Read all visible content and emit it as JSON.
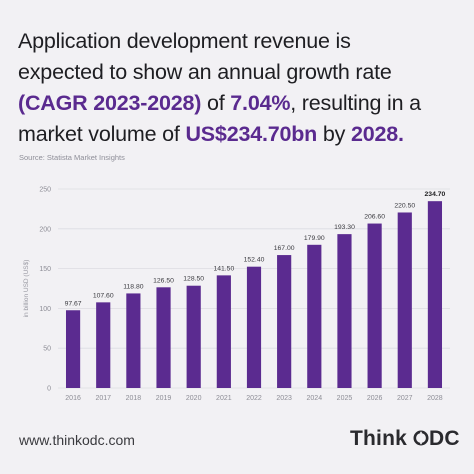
{
  "headline": {
    "line1": "Application development revenue is",
    "line2": "expected to show an annual growth rate",
    "line3_highlight": "(CAGR 2023-2028)",
    "line3_mid": " of ",
    "line3_value": "7.04%",
    "line3_end": ", resulting in a",
    "line4_start": "market volume of ",
    "line4_value": "US$234.70bn",
    "line4_mid": " by ",
    "line4_year": "2028",
    "line4_end": "."
  },
  "source": "Source: Statista Market Insights",
  "footer": {
    "url": "www.thinkodc.com",
    "logo_text_left": "Think",
    "logo_text_right": "DC"
  },
  "colors": {
    "bar": "#5b2b90",
    "highlight": "#5a2a8f",
    "grid": "#dcdce2",
    "background": "#f2f1f4"
  },
  "chart_data": {
    "type": "bar",
    "categories": [
      "2016",
      "2017",
      "2018",
      "2019",
      "2020",
      "2021",
      "2022",
      "2023",
      "2024",
      "2025",
      "2026",
      "2027",
      "2028"
    ],
    "values": [
      97.67,
      107.6,
      118.8,
      126.5,
      128.5,
      141.5,
      152.4,
      167.0,
      179.9,
      193.3,
      206.6,
      220.5,
      234.7
    ],
    "value_labels": [
      "97.67",
      "107.60",
      "118.80",
      "126.50",
      "128.50",
      "141.50",
      "152.40",
      "167.00",
      "179.90",
      "193.30",
      "206.60",
      "220.50",
      "234.70"
    ],
    "ylabel": "in billion USD (US$)",
    "yticks": [
      "0",
      "50",
      "100",
      "150",
      "200",
      "250"
    ],
    "ylim": [
      0,
      250
    ],
    "grid": true,
    "legend": "none"
  }
}
